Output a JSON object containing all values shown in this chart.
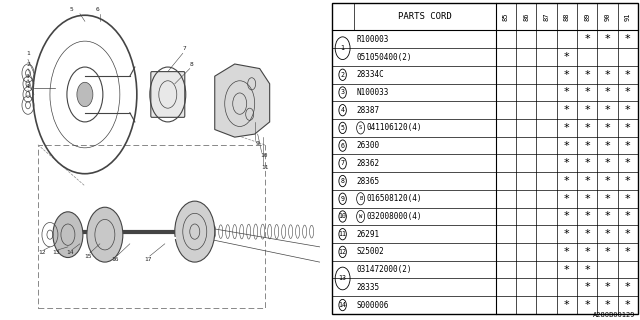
{
  "title": "A280B00129",
  "table_header": "PARTS CORD",
  "col_headers": [
    "85",
    "86",
    "87",
    "88",
    "89",
    "90",
    "91"
  ],
  "rows": [
    {
      "ref": "1",
      "part": "R100003",
      "stars": [
        0,
        0,
        0,
        0,
        1,
        1,
        1
      ],
      "span_start": true,
      "span": 2
    },
    {
      "ref": "1",
      "part": "051050400(2)",
      "stars": [
        0,
        0,
        0,
        1,
        0,
        0,
        0
      ],
      "span_start": false,
      "span": 2
    },
    {
      "ref": "2",
      "part": "28334C",
      "stars": [
        0,
        0,
        0,
        1,
        1,
        1,
        1
      ],
      "span_start": true,
      "span": 1
    },
    {
      "ref": "3",
      "part": "N100033",
      "stars": [
        0,
        0,
        0,
        1,
        1,
        1,
        1
      ],
      "span_start": true,
      "span": 1
    },
    {
      "ref": "4",
      "part": "28387",
      "stars": [
        0,
        0,
        0,
        1,
        1,
        1,
        1
      ],
      "span_start": true,
      "span": 1
    },
    {
      "ref": "5",
      "part": "S041106120(4)",
      "stars": [
        0,
        0,
        0,
        1,
        1,
        1,
        1
      ],
      "span_start": true,
      "span": 1
    },
    {
      "ref": "6",
      "part": "26300",
      "stars": [
        0,
        0,
        0,
        1,
        1,
        1,
        1
      ],
      "span_start": true,
      "span": 1
    },
    {
      "ref": "7",
      "part": "28362",
      "stars": [
        0,
        0,
        0,
        1,
        1,
        1,
        1
      ],
      "span_start": true,
      "span": 1
    },
    {
      "ref": "8",
      "part": "28365",
      "stars": [
        0,
        0,
        0,
        1,
        1,
        1,
        1
      ],
      "span_start": true,
      "span": 1
    },
    {
      "ref": "9",
      "part": "B016508120(4)",
      "stars": [
        0,
        0,
        0,
        1,
        1,
        1,
        1
      ],
      "span_start": true,
      "span": 1
    },
    {
      "ref": "10",
      "part": "W032008000(4)",
      "stars": [
        0,
        0,
        0,
        1,
        1,
        1,
        1
      ],
      "span_start": true,
      "span": 1
    },
    {
      "ref": "11",
      "part": "26291",
      "stars": [
        0,
        0,
        0,
        1,
        1,
        1,
        1
      ],
      "span_start": true,
      "span": 1
    },
    {
      "ref": "12",
      "part": "S25002",
      "stars": [
        0,
        0,
        0,
        1,
        1,
        1,
        1
      ],
      "span_start": true,
      "span": 1
    },
    {
      "ref": "13",
      "part": "031472000(2)",
      "stars": [
        0,
        0,
        0,
        1,
        1,
        0,
        0
      ],
      "span_start": true,
      "span": 2
    },
    {
      "ref": "13",
      "part": "28335",
      "stars": [
        0,
        0,
        0,
        0,
        1,
        1,
        1
      ],
      "span_start": false,
      "span": 2
    },
    {
      "ref": "14",
      "part": "S000006",
      "stars": [
        0,
        0,
        0,
        1,
        1,
        1,
        1
      ],
      "span_start": true,
      "span": 1
    }
  ],
  "special_prefix": {
    "5": "S",
    "9": "B",
    "10": "W"
  },
  "bg_color": "#ffffff"
}
